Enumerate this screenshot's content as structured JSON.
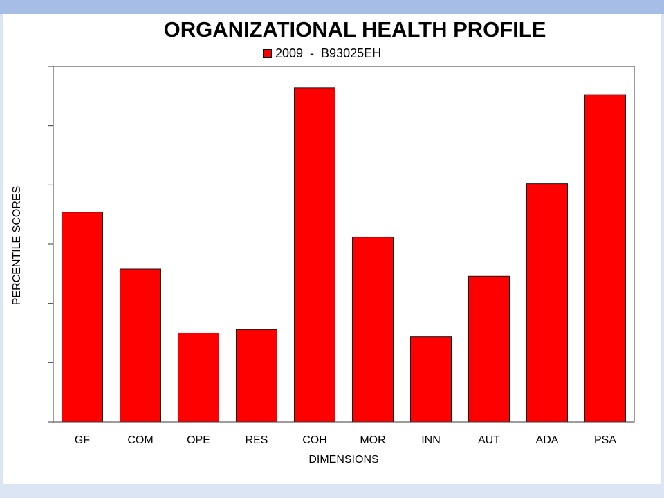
{
  "theme": {
    "top_bar_color": "#a6bde6",
    "frame_color": "#dce5f4"
  },
  "chart_data": {
    "type": "bar",
    "title": "ORGANIZATIONAL HEALTH PROFILE",
    "xlabel": "DIMENSIONS",
    "ylabel": "PERCENTILE SCORES",
    "categories": [
      "GF",
      "COM",
      "OPE",
      "RES",
      "COH",
      "MOR",
      "INN",
      "AUT",
      "ADA",
      "PSA"
    ],
    "series": [
      {
        "name": "2009  -  B93025EH",
        "color": "#ff0000",
        "values": [
          59,
          43,
          25,
          26,
          94,
          52,
          24,
          41,
          67,
          92
        ]
      }
    ],
    "ylim": [
      0,
      100
    ],
    "y_tick_labels_shown": false,
    "grid": false,
    "legend_position": "top"
  }
}
